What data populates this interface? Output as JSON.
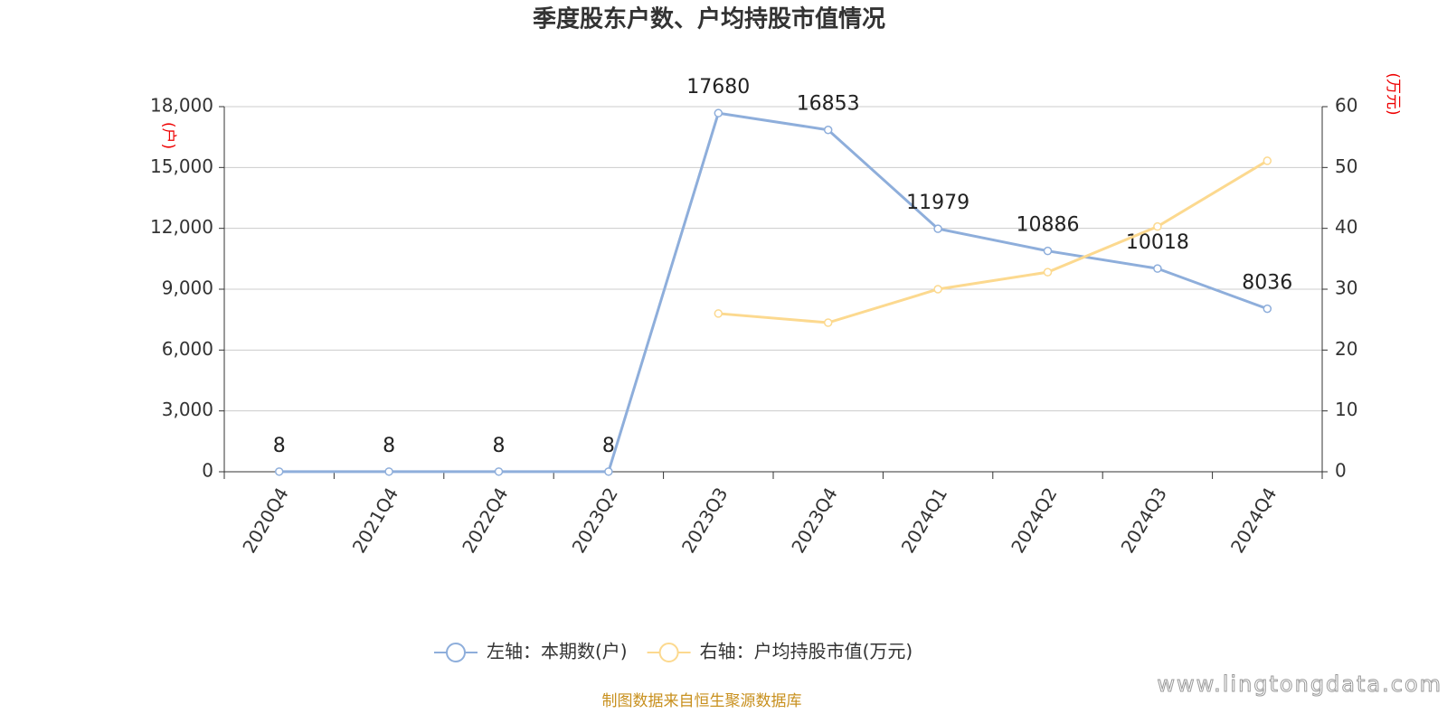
{
  "chart_data": {
    "type": "line",
    "title": "季度股东户数、户均持股市值情况",
    "categories": [
      "2020Q4",
      "2021Q4",
      "2022Q4",
      "2023Q2",
      "2023Q3",
      "2023Q4",
      "2024Q1",
      "2024Q2",
      "2024Q3",
      "2024Q4"
    ],
    "series": [
      {
        "name": "左轴：本期数(户)",
        "color": "#8eaedb",
        "values": [
          8,
          8,
          8,
          8,
          17680,
          16853,
          11979,
          10886,
          10018,
          8036
        ],
        "data_labels": true
      },
      {
        "name": "右轴：户均持股市值(万元)",
        "color": "#fcd98f",
        "axis": "y2",
        "values": [
          null,
          null,
          null,
          null,
          26.0,
          24.5,
          30.0,
          32.8,
          40.3,
          51.1
        ],
        "data_labels": false
      }
    ],
    "ylabel": "(户)",
    "y2label": "(万元)",
    "ylim": [
      0,
      18000
    ],
    "yticks": [
      0,
      {
        "value": 3000,
        "label": "3,000"
      },
      {
        "value": 6000,
        "label": "6,000"
      },
      {
        "value": 9000,
        "label": "9,000"
      },
      {
        "value": 12000,
        "label": "12,000"
      },
      {
        "value": 15000,
        "label": "15,000"
      },
      {
        "value": 18000,
        "label": "18,000"
      }
    ],
    "y2lim": [
      0,
      60
    ],
    "y2ticks": [
      0,
      10,
      20,
      30,
      40,
      50,
      60
    ],
    "grid": true,
    "source": "制图数据来自恒生聚源数据库",
    "watermark": "www.lingtongdata.com"
  }
}
